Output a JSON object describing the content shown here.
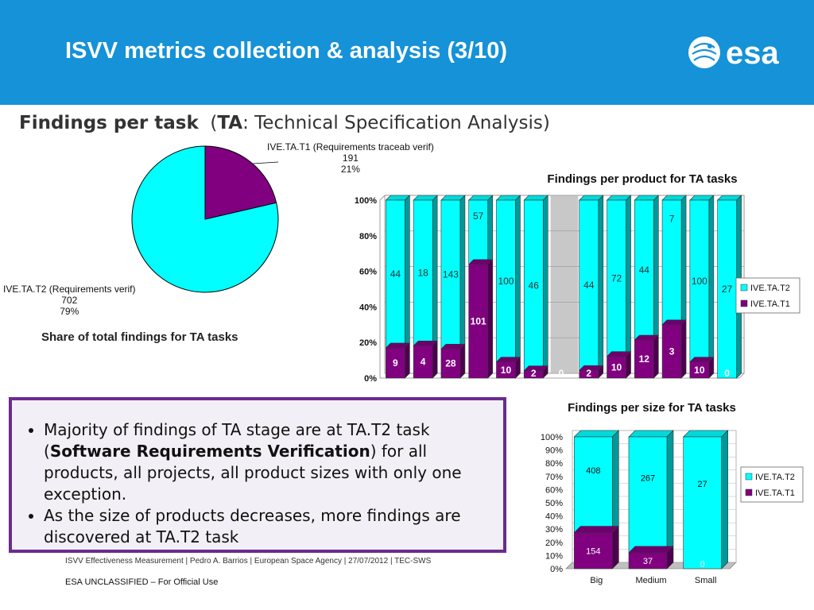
{
  "header": {
    "title": "ISVV metrics collection & analysis  (3/10)",
    "logo_text": "esa",
    "bg_color": "#1592d8"
  },
  "subtitle": {
    "bold": "Findings per task",
    "open": "(",
    "abbr": "TA",
    "rest": ": Technical Specification Analysis)"
  },
  "bullets": {
    "b1_pre": "Majority of findings of TA stage are at TA.T2 task (",
    "b1_bold": "Software Requirements Verification",
    "b1_post": ") for all products, all projects, all product sizes with only one exception.",
    "b2": "As the size of products decreases, more findings are discovered at TA.T2 task"
  },
  "footer": {
    "line1": "ISVV Effectiveness Measurement | Pedro A. Barrios | European Space Agency | 27/07/2012 | TEC-SWS",
    "line2": "ESA UNCLASSIFIED – For Official Use"
  },
  "colors": {
    "T2": "#00ffff",
    "T1": "#800080"
  },
  "chart_data": [
    {
      "type": "pie",
      "title": "Share of total findings for TA tasks",
      "slices": [
        {
          "label": "IVE.TA.T1 (Requirements traceab verif)",
          "value": 191,
          "pct": "21%",
          "color": "#800080"
        },
        {
          "label": "IVE.TA.T2 (Requirements verif)",
          "value": 702,
          "pct": "79%",
          "color": "#00ffff"
        }
      ]
    },
    {
      "type": "bar",
      "stacked": "percent",
      "title": "Findings per product for TA tasks",
      "yticks": [
        "0%",
        "20%",
        "40%",
        "60%",
        "80%",
        "100%"
      ],
      "ylim": [
        0,
        100
      ],
      "legend": "right",
      "series": [
        {
          "name": "IVE.TA.T2",
          "color": "#00ffff",
          "values": [
            44,
            18,
            143,
            57,
            100,
            46,
            null,
            44,
            72,
            44,
            7,
            100,
            27
          ]
        },
        {
          "name": "IVE.TA.T1",
          "color": "#800080",
          "values": [
            9,
            4,
            28,
            101,
            10,
            2,
            0,
            2,
            10,
            12,
            3,
            10,
            0
          ]
        }
      ]
    },
    {
      "type": "bar",
      "stacked": "percent",
      "title": "Findings per size for TA tasks",
      "categories": [
        "Big",
        "Medium",
        "Small"
      ],
      "yticks": [
        "0%",
        "10%",
        "20%",
        "30%",
        "40%",
        "50%",
        "60%",
        "70%",
        "80%",
        "90%",
        "100%"
      ],
      "ylim": [
        0,
        100
      ],
      "legend": "right",
      "series": [
        {
          "name": "IVE.TA.T2",
          "color": "#00ffff",
          "values": [
            408,
            267,
            27
          ]
        },
        {
          "name": "IVE.TA.T1",
          "color": "#800080",
          "values": [
            154,
            37,
            0
          ]
        }
      ]
    }
  ]
}
